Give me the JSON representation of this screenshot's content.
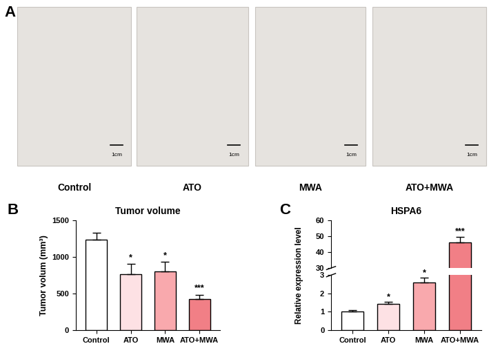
{
  "panel_a": {
    "label": "A",
    "groups": [
      "Control",
      "ATO",
      "MWA",
      "ATO+MWA"
    ],
    "scale_bar": "1cm"
  },
  "chart_data": [
    {
      "panel": "B",
      "type": "bar",
      "title": "Tumor volume",
      "y_label": "Tumor volum (mm³)",
      "categories": [
        "Control",
        "ATO",
        "MWA",
        "ATO+MWA"
      ],
      "values": [
        1230,
        765,
        800,
        425
      ],
      "errors": [
        100,
        140,
        130,
        60
      ],
      "significance": [
        null,
        "*",
        "*",
        "***"
      ],
      "colors": [
        "#ffffff",
        "#fde1e4",
        "#f9a9ad",
        "#f17f86"
      ],
      "ylim": [
        0,
        1500
      ],
      "yticks": [
        0,
        500,
        1000,
        1500
      ]
    },
    {
      "panel": "C",
      "type": "bar",
      "title": "HSPA6",
      "y_label": "Relative expression level",
      "categories": [
        "Control",
        "ATO",
        "MWA",
        "ATO+MWA"
      ],
      "values": [
        1.0,
        1.45,
        2.6,
        46
      ],
      "errors": [
        0.08,
        0.08,
        0.25,
        3.5
      ],
      "significance": [
        null,
        "*",
        "*",
        "***"
      ],
      "colors": [
        "#ffffff",
        "#fde1e4",
        "#f9a9ad",
        "#f17f86"
      ],
      "segments": [
        {
          "ylim": [
            0,
            3
          ],
          "yticks": [
            0,
            1,
            2,
            3
          ]
        },
        {
          "ylim": [
            30,
            60
          ],
          "yticks": [
            30,
            40,
            50,
            60
          ]
        }
      ]
    }
  ]
}
